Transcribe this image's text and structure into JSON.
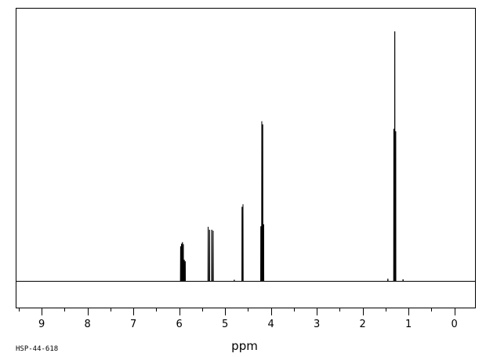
{
  "chart_data": {
    "type": "line",
    "title": "",
    "xlabel": "ppm",
    "ylabel": "",
    "xlim": [
      9.55,
      -0.45
    ],
    "ylim": [
      0,
      100
    ],
    "x_reversed": true,
    "grid": false,
    "x_ticks": [
      "9",
      "8",
      "7",
      "6",
      "5",
      "4",
      "3",
      "2",
      "1",
      "0"
    ],
    "x_tick_values": [
      9,
      8,
      7,
      6,
      5,
      4,
      3,
      2,
      1,
      0
    ],
    "spectrum_id": "HSP-44-618",
    "peaks": [
      {
        "ppm": 5.97,
        "height": 14.0
      },
      {
        "ppm": 5.95,
        "height": 15.0
      },
      {
        "ppm": 5.93,
        "height": 15.6
      },
      {
        "ppm": 5.91,
        "height": 14.8
      },
      {
        "ppm": 5.89,
        "height": 8.6
      },
      {
        "ppm": 5.87,
        "height": 8.0
      },
      {
        "ppm": 5.37,
        "height": 21.8
      },
      {
        "ppm": 5.34,
        "height": 20.6
      },
      {
        "ppm": 5.29,
        "height": 20.6
      },
      {
        "ppm": 5.26,
        "height": 20.2
      },
      {
        "ppm": 4.63,
        "height": 29.8
      },
      {
        "ppm": 4.61,
        "height": 30.8
      },
      {
        "ppm": 4.22,
        "height": 22.0
      },
      {
        "ppm": 4.2,
        "height": 64.0
      },
      {
        "ppm": 4.18,
        "height": 62.8
      },
      {
        "ppm": 4.16,
        "height": 22.8
      },
      {
        "ppm": 1.32,
        "height": 61.0
      },
      {
        "ppm": 1.3,
        "height": 100.0
      },
      {
        "ppm": 1.28,
        "height": 60.0
      },
      {
        "ppm": 1.45,
        "height": 1.0
      },
      {
        "ppm": 1.12,
        "height": 0.8
      },
      {
        "ppm": 4.8,
        "height": 0.6
      }
    ]
  }
}
